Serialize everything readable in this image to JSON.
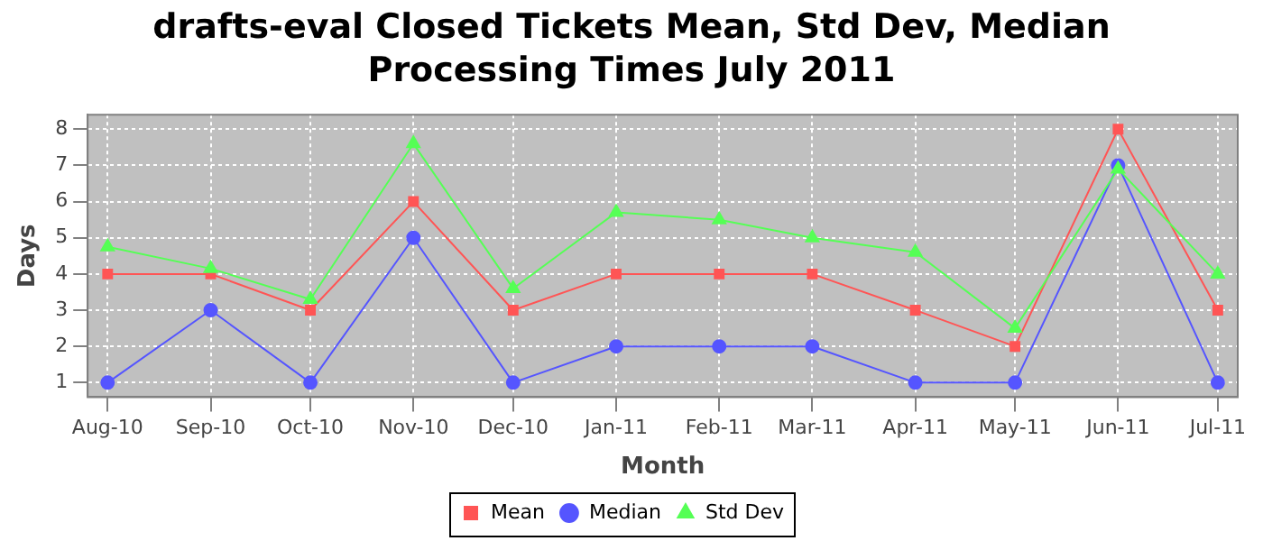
{
  "chart_data": {
    "type": "line",
    "title": "drafts-eval Closed Tickets Mean, Std Dev, Median Processing Times July 2011",
    "xlabel": "Month",
    "ylabel": "Days",
    "x": [
      "2010-08",
      "2010-09",
      "2010-10",
      "2010-11",
      "2010-12",
      "2011-01",
      "2011-02",
      "2011-03",
      "2011-04",
      "2011-05",
      "2011-06",
      "2011-07"
    ],
    "xlim": [
      "2010-07-26",
      "2011-07-07"
    ],
    "xticks": [
      {
        "value": "2010-08",
        "label": "Aug-10"
      },
      {
        "value": "2010-09",
        "label": "Sep-10"
      },
      {
        "value": "2010-10",
        "label": "Oct-10"
      },
      {
        "value": "2010-11",
        "label": "Nov-10"
      },
      {
        "value": "2010-12",
        "label": "Dec-10"
      },
      {
        "value": "2011-01",
        "label": "Jan-11"
      },
      {
        "value": "2011-02",
        "label": "Feb-11"
      },
      {
        "value": "2011-03",
        "label": "Mar-11"
      },
      {
        "value": "2011-04",
        "label": "Apr-11"
      },
      {
        "value": "2011-05",
        "label": "May-11"
      },
      {
        "value": "2011-06",
        "label": "Jun-11"
      },
      {
        "value": "2011-07",
        "label": "Jul-11"
      }
    ],
    "ylim": [
      0.6,
      8.4
    ],
    "yticks": [
      1,
      2,
      3,
      4,
      5,
      6,
      7,
      8
    ],
    "grid": true,
    "legend": "bottom",
    "series": [
      {
        "name": "Mean",
        "color": "#ff5555",
        "marker": "square",
        "values": [
          4,
          4,
          3,
          6,
          3,
          4,
          4,
          4,
          3,
          2,
          8,
          3
        ]
      },
      {
        "name": "Median",
        "color": "#5555ff",
        "marker": "circle",
        "values": [
          1,
          3,
          1,
          5,
          1,
          2,
          2,
          2,
          1,
          1,
          7,
          1
        ]
      },
      {
        "name": "Std Dev",
        "color": "#55ff55",
        "marker": "triangle",
        "values": [
          4.75,
          4.15,
          3.3,
          7.6,
          3.6,
          5.7,
          5.5,
          5.0,
          4.6,
          2.5,
          6.9,
          4.0
        ]
      }
    ]
  }
}
